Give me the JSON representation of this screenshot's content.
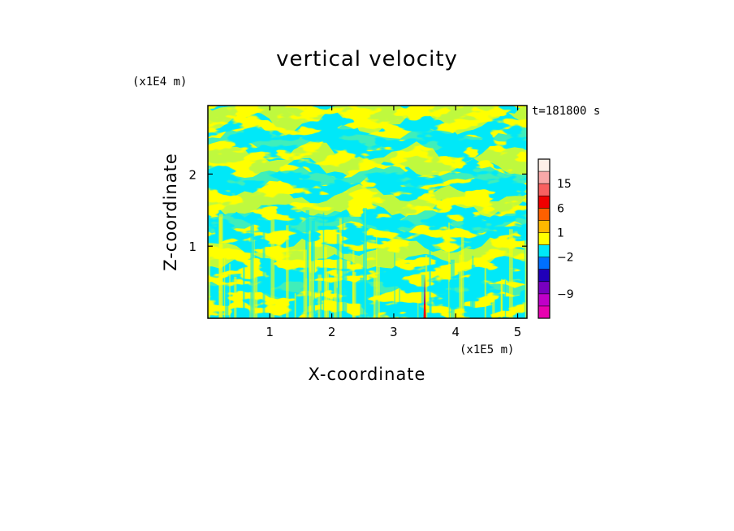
{
  "chart_data": {
    "type": "heatmap",
    "title": "vertical velocity",
    "xlabel": "X-coordinate",
    "ylabel": "Z-coordinate",
    "x_unit_label": "(x1E5 m)",
    "y_unit_label": "(x1E4 m)",
    "time_label": "t=181800 s",
    "xlim": [
      0,
      5.15
    ],
    "ylim": [
      0,
      2.95
    ],
    "x_ticks": [
      1,
      2,
      3,
      4,
      5
    ],
    "y_ticks": [
      1,
      2
    ],
    "x_tick_labels": [
      "1",
      "2",
      "3",
      "4",
      "5"
    ],
    "y_tick_labels": [
      "1",
      "2"
    ],
    "field_colors": {
      "negative": "#00e8f8",
      "positive": "#ffff00"
    },
    "colorbar": {
      "levels": [
        {
          "color": "#e800b0"
        },
        {
          "color": "#c000c8"
        },
        {
          "color": "#7800c0"
        },
        {
          "color": "#2000b8"
        },
        {
          "color": "#0070ff"
        },
        {
          "color": "#00e8f8"
        },
        {
          "color": "#ffff00"
        },
        {
          "color": "#ffb800"
        },
        {
          "color": "#ff6000"
        },
        {
          "color": "#f00000"
        },
        {
          "color": "#f86060"
        },
        {
          "color": "#f8a8a8"
        },
        {
          "color": "#fff0e8"
        }
      ],
      "tick_labels": [
        {
          "label": "15",
          "at_boundary": 11
        },
        {
          "label": "6",
          "at_boundary": 9
        },
        {
          "label": "1",
          "at_boundary": 7
        },
        {
          "label": "−2",
          "at_boundary": 5
        },
        {
          "label": "−9",
          "at_boundary": 2
        }
      ]
    }
  }
}
